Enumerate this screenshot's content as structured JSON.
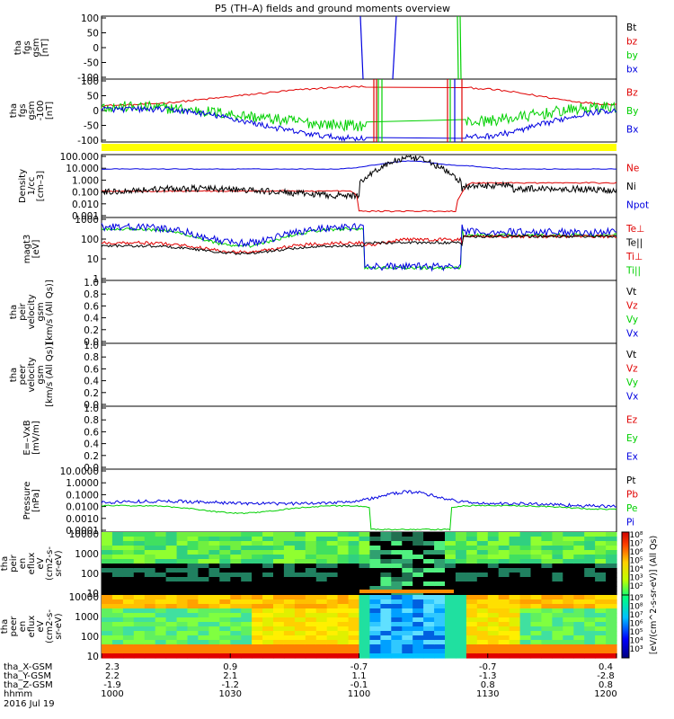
{
  "title": "P5 (TH–A) fields and ground moments overview",
  "colors": {
    "black": "#000000",
    "red": "#e00000",
    "green": "#00d000",
    "blue": "#0000e0",
    "yellow": "#ffff00",
    "orange": "#ff8c00"
  },
  "chart_data": [
    {
      "type": "line",
      "panel": "fgs",
      "ylabel": [
        "tha",
        "fgs",
        "gsm",
        "[nT]"
      ],
      "ylim": [
        -100,
        100
      ],
      "ticks": [
        "100",
        "50",
        "0",
        "-50",
        "-100"
      ],
      "legend": [
        {
          "name": "Bt",
          "color": "black"
        },
        {
          "name": "bz",
          "color": "red"
        },
        {
          "name": "by",
          "color": "green"
        },
        {
          "name": "bx",
          "color": "blue"
        }
      ]
    },
    {
      "type": "line",
      "panel": "fgs_dsl",
      "ylabel": [
        "tha",
        "fgs",
        "gsm",
        "-100",
        "[nT]"
      ],
      "ylim": [
        -125,
        125
      ],
      "ticks": [
        "100",
        "50",
        "0",
        "-50",
        "-100"
      ],
      "legend": [
        {
          "name": "Bz",
          "color": "red"
        },
        {
          "name": "By",
          "color": "green"
        },
        {
          "name": "Bx",
          "color": "blue"
        }
      ]
    },
    {
      "type": "line",
      "panel": "density",
      "ylabel": [
        "Density",
        "1/cc",
        "[cm–3]"
      ],
      "ylim": [
        0.001,
        100
      ],
      "yscale": "log",
      "ticks": [
        "100.000",
        "10.000",
        "1.000",
        "0.100",
        "0.010",
        "0.001"
      ],
      "legend": [
        {
          "name": "Ne",
          "color": "red"
        },
        {
          "name": "Ni",
          "color": "black"
        },
        {
          "name": "Npot",
          "color": "blue"
        }
      ]
    },
    {
      "type": "line",
      "panel": "temperature",
      "ylabel": [
        "magt3",
        "[eV]"
      ],
      "ylim": [
        1,
        3000
      ],
      "yscale": "log",
      "ticks": [
        "1000",
        "100",
        "10",
        "1"
      ],
      "legend": [
        {
          "name": "Te⊥",
          "color": "red"
        },
        {
          "name": "Te||",
          "color": "black"
        },
        {
          "name": "Ti⊥",
          "color": "red"
        },
        {
          "name": "Ti||",
          "color": "green"
        }
      ]
    },
    {
      "type": "line",
      "panel": "peir_velocity",
      "ylabel": [
        "tha",
        "peir",
        "velocity",
        "gsm",
        "[km/s (All Qs)]"
      ],
      "ylim": [
        0,
        1
      ],
      "ticks": [
        "1.0",
        "0.8",
        "0.6",
        "0.4",
        "0.2",
        "0.0"
      ],
      "legend": [
        {
          "name": "Vt",
          "color": "black"
        },
        {
          "name": "Vz",
          "color": "red"
        },
        {
          "name": "Vy",
          "color": "green"
        },
        {
          "name": "Vx",
          "color": "blue"
        }
      ]
    },
    {
      "type": "line",
      "panel": "peer_velocity",
      "ylabel": [
        "tha",
        "peer",
        "velocity",
        "gsm",
        "[km/s (All Qs)]"
      ],
      "ylim": [
        0,
        1
      ],
      "ticks": [
        "1.0",
        "0.8",
        "0.6",
        "0.4",
        "0.2",
        "0.0"
      ],
      "legend": [
        {
          "name": "Vt",
          "color": "black"
        },
        {
          "name": "Vz",
          "color": "red"
        },
        {
          "name": "Vy",
          "color": "green"
        },
        {
          "name": "Vx",
          "color": "blue"
        }
      ]
    },
    {
      "type": "line",
      "panel": "efield",
      "ylabel": [
        "E=–VxB",
        "[mV/m]"
      ],
      "ylim": [
        0,
        1
      ],
      "ticks": [
        "1.0",
        "0.8",
        "0.6",
        "0.4",
        "0.2",
        "0.0"
      ],
      "legend": [
        {
          "name": "Ez",
          "color": "red"
        },
        {
          "name": "Ey",
          "color": "green"
        },
        {
          "name": "Ex",
          "color": "blue"
        }
      ]
    },
    {
      "type": "line",
      "panel": "pressure",
      "ylabel": [
        "Pressure",
        "[nPa]"
      ],
      "ylim": [
        0.0001,
        10
      ],
      "yscale": "log",
      "ticks": [
        "10.0000",
        "1.0000",
        "0.1000",
        "0.0100",
        "0.0010",
        "0.0001"
      ],
      "legend": [
        {
          "name": "Pt",
          "color": "black"
        },
        {
          "name": "Pb",
          "color": "red"
        },
        {
          "name": "Pe",
          "color": "green"
        },
        {
          "name": "Pi",
          "color": "blue"
        }
      ]
    },
    {
      "type": "heatmap",
      "panel": "peir_spectrogram",
      "ylabel": [
        "tha",
        "peir",
        "en",
        "eflux",
        "eV",
        "(cm2-s-",
        "sr-eV)"
      ],
      "ylim": [
        5,
        30000
      ],
      "yscale": "log",
      "ticks": [
        "10000",
        "1000",
        "100",
        "10"
      ]
    },
    {
      "type": "heatmap",
      "panel": "peer_spectrogram",
      "ylabel": [
        "tha",
        "peer",
        "en",
        "eflux",
        "eV",
        "(cm2-s-",
        "sr-eV)"
      ],
      "ylim": [
        5,
        30000
      ],
      "yscale": "log",
      "ticks": [
        "10000",
        "1000",
        "100",
        "10"
      ]
    }
  ],
  "colorbar": {
    "label": "[eV/(cm^2-s-sr-eV)] (All Qs)",
    "top_ticks": [
      "10⁸",
      "10⁷",
      "10⁶",
      "10⁵",
      "10⁴",
      "10³",
      "10²"
    ],
    "bottom_ticks": [
      "10⁹",
      "10⁸",
      "10⁷",
      "10⁶",
      "10⁵",
      "10⁴",
      "10³"
    ]
  },
  "x_axis": {
    "row_labels": [
      "tha_X-GSM",
      "tha_Y-GSM",
      "tha_Z-GSM",
      "hhmm",
      "2016 Jul 19"
    ],
    "columns": [
      {
        "rows": [
          "2.3",
          "2.2",
          "-1.9",
          "1000"
        ]
      },
      {
        "rows": [
          "0.9",
          "2.1",
          "-1.2",
          "1030"
        ]
      },
      {
        "rows": [
          "-0.7",
          "1.1",
          "-0.1",
          "1100"
        ]
      },
      {
        "rows": [
          "-0.7",
          "-1.3",
          "0.8",
          "1130"
        ]
      },
      {
        "rows": [
          "0.4",
          "-2.8",
          "0.8",
          "1200"
        ]
      }
    ]
  }
}
